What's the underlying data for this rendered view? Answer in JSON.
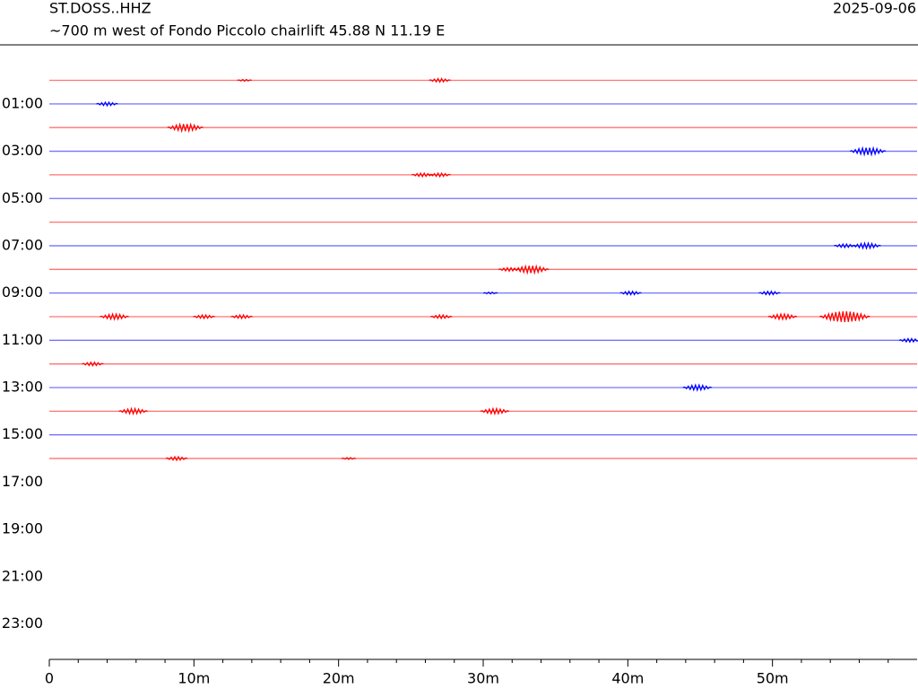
{
  "chart_data": {
    "type": "helicorder",
    "title": "ST.DOSS..HHZ",
    "subtitle": "~700 m west of Fondo Piccolo chairlift  45.88 N 11.19 E",
    "date": "2025-09-06",
    "xlim": [
      0,
      60
    ],
    "xticks": [
      0,
      {
        "value": 10,
        "label": "10m"
      },
      {
        "value": 20,
        "label": "20m"
      },
      {
        "value": 30,
        "label": "30m"
      },
      {
        "value": 40,
        "label": "40m"
      },
      {
        "value": 50,
        "label": "50m"
      }
    ],
    "xminorticks": [
      2,
      4,
      6,
      8,
      12,
      14,
      16,
      18,
      22,
      24,
      26,
      28,
      32,
      34,
      36,
      38,
      42,
      44,
      46,
      48,
      52,
      54,
      56,
      58
    ],
    "ylim": [
      -1.5,
      24.5
    ],
    "yticks": [
      {
        "value": 1,
        "label": "01:00"
      },
      {
        "value": 3,
        "label": "03:00"
      },
      {
        "value": 5,
        "label": "05:00"
      },
      {
        "value": 7,
        "label": "07:00"
      },
      {
        "value": 9,
        "label": "09:00"
      },
      {
        "value": 11,
        "label": "11:00"
      },
      {
        "value": 13,
        "label": "13:00"
      },
      {
        "value": 15,
        "label": "15:00"
      },
      {
        "value": 17,
        "label": "17:00"
      },
      {
        "value": 19,
        "label": "19:00"
      },
      {
        "value": 21,
        "label": "21:00"
      },
      {
        "value": 23,
        "label": "23:00"
      }
    ],
    "traces": [
      {
        "hour": 0,
        "color": "#ff0000",
        "bursts": [
          [
            13.5,
            1
          ],
          [
            27,
            2
          ]
        ]
      },
      {
        "hour": 1,
        "color": "#0000ff",
        "bursts": [
          [
            4,
            2
          ]
        ]
      },
      {
        "hour": 2,
        "color": "#ff0000",
        "bursts": [
          [
            9.4,
            4
          ]
        ]
      },
      {
        "hour": 3,
        "color": "#0000ff",
        "bursts": [
          [
            56.6,
            4
          ]
        ]
      },
      {
        "hour": 4,
        "color": "#ff0000",
        "bursts": [
          [
            25.8,
            2
          ],
          [
            27,
            2
          ]
        ]
      },
      {
        "hour": 5,
        "color": "#0000ff",
        "bursts": []
      },
      {
        "hour": 6,
        "color": "#ff0000",
        "bursts": []
      },
      {
        "hour": 7,
        "color": "#0000ff",
        "bursts": [
          [
            55,
            2
          ],
          [
            56.5,
            3
          ]
        ]
      },
      {
        "hour": 8,
        "color": "#ff0000",
        "bursts": [
          [
            31.8,
            2
          ],
          [
            33.3,
            4
          ]
        ]
      },
      {
        "hour": 9,
        "color": "#0000ff",
        "bursts": [
          [
            30.5,
            1
          ],
          [
            40.2,
            2
          ],
          [
            49.8,
            2
          ]
        ]
      },
      {
        "hour": 10,
        "color": "#ff0000",
        "bursts": [
          [
            4.5,
            3
          ],
          [
            10.7,
            2
          ],
          [
            13.3,
            2
          ],
          [
            27.1,
            2
          ],
          [
            50.7,
            3
          ],
          [
            55,
            6
          ]
        ]
      },
      {
        "hour": 11,
        "color": "#0000ff",
        "bursts": [
          [
            59.5,
            2
          ]
        ]
      },
      {
        "hour": 12,
        "color": "#ff0000",
        "bursts": [
          [
            3,
            2
          ]
        ]
      },
      {
        "hour": 13,
        "color": "#0000ff",
        "bursts": [
          [
            44.8,
            3
          ]
        ]
      },
      {
        "hour": 14,
        "color": "#ff0000",
        "bursts": [
          [
            5.8,
            3
          ],
          [
            30.8,
            3
          ]
        ]
      },
      {
        "hour": 15,
        "color": "#0000ff",
        "bursts": []
      },
      {
        "hour": 16,
        "color": "#ff0000",
        "bursts": [
          [
            8.8,
            2
          ],
          [
            20.7,
            1
          ]
        ]
      }
    ]
  }
}
